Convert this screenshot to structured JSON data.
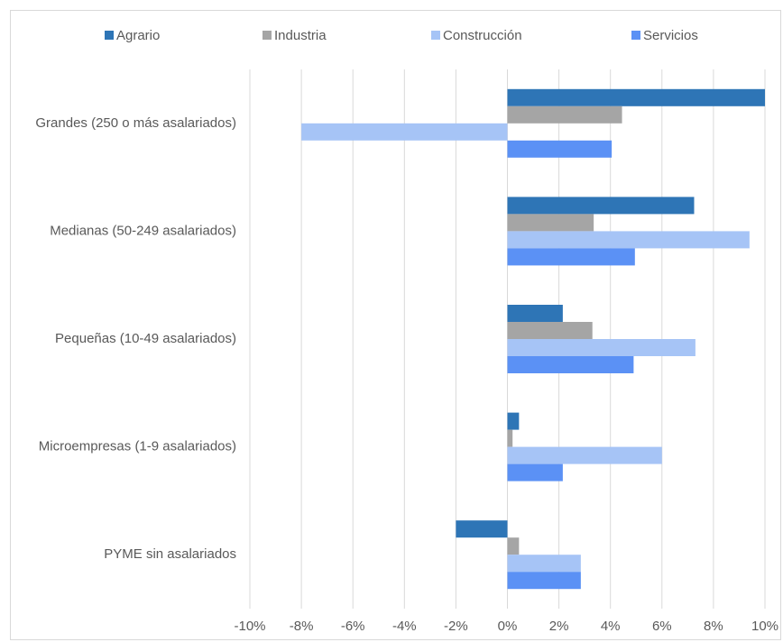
{
  "chart_data": {
    "type": "hbar",
    "categories": [
      "Grandes (250 o más asalariados)",
      "Medianas (50-249 asalariados)",
      "Pequeñas (10-49 asalariados)",
      "Microempresas (1-9 asalariados)",
      "PYME sin asalariados"
    ],
    "series": [
      {
        "name": "Agrario",
        "color": "#2e75b6",
        "values": [
          10,
          7.25,
          2.15,
          0.45,
          -2.0
        ]
      },
      {
        "name": "Industria",
        "color": "#a5a5a5",
        "values": [
          4.45,
          3.35,
          3.3,
          0.2,
          0.45
        ]
      },
      {
        "name": "Construcción",
        "color": "#a6c4f6",
        "values": [
          -8.0,
          9.4,
          7.3,
          6.0,
          2.85
        ]
      },
      {
        "name": "Servicios",
        "color": "#5b91f5",
        "values": [
          4.05,
          4.95,
          4.9,
          2.15,
          2.85
        ]
      }
    ],
    "xlim": [
      -10,
      10
    ],
    "xticks": [
      {
        "value": -10,
        "label": "-10%"
      },
      {
        "value": -8,
        "label": "-8%"
      },
      {
        "value": -6,
        "label": "-6%"
      },
      {
        "value": -4,
        "label": "-4%"
      },
      {
        "value": -2,
        "label": "-2%"
      },
      {
        "value": 0,
        "label": "0%"
      },
      {
        "value": 2,
        "label": "2%"
      },
      {
        "value": 4,
        "label": "4%"
      },
      {
        "value": 6,
        "label": "6%"
      },
      {
        "value": 8,
        "label": "8%"
      },
      {
        "value": 10,
        "label": "10%"
      }
    ],
    "grid": true,
    "legend": "top"
  }
}
